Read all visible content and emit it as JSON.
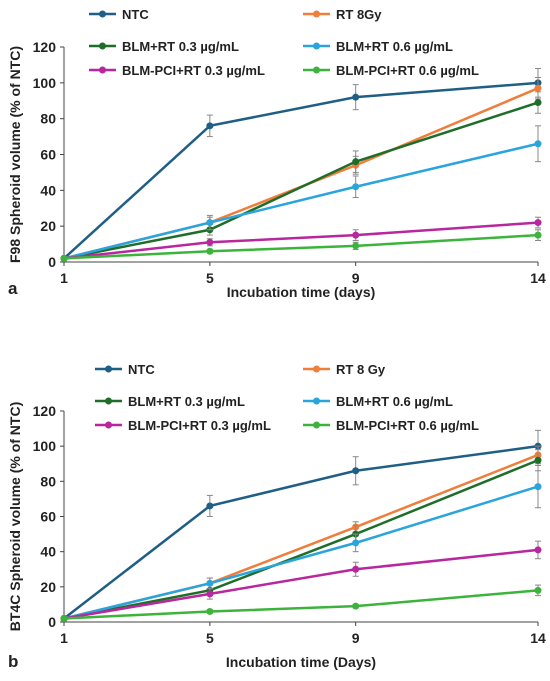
{
  "chart_data": [
    {
      "panel": "a",
      "type": "line",
      "xlabel": "Incubation time (days)",
      "ylabel": "F98 Spheroid volume (% of NTC)",
      "x": [
        1,
        5,
        9,
        14
      ],
      "ylim": [
        0,
        120
      ],
      "yticks": [
        0,
        20,
        40,
        60,
        80,
        100,
        120
      ],
      "grid": false,
      "legend_position": "top",
      "series": [
        {
          "name": "NTC",
          "color": "#1f5f85",
          "values": [
            2,
            76,
            92,
            100
          ],
          "errors": [
            0,
            6,
            7,
            8
          ]
        },
        {
          "name": "RT 8Gy",
          "color": "#f07d3a",
          "values": [
            2,
            22,
            54,
            97
          ],
          "errors": [
            0,
            3,
            5,
            6
          ]
        },
        {
          "name": "BLM+RT 0.3 µg/mL",
          "color": "#1e6e2a",
          "values": [
            2,
            18,
            56,
            89
          ],
          "errors": [
            0,
            3,
            6,
            6
          ]
        },
        {
          "name": "BLM+RT 0.6 µg/mL",
          "color": "#2aa4dc",
          "values": [
            2,
            22,
            42,
            66
          ],
          "errors": [
            0,
            4,
            6,
            10
          ]
        },
        {
          "name": "BLM-PCI+RT 0.3 µg/mL",
          "color": "#b8279e",
          "values": [
            2,
            11,
            15,
            22
          ],
          "errors": [
            0,
            2,
            3,
            3
          ]
        },
        {
          "name": "BLM-PCI+RT 0.6 µg/mL",
          "color": "#3cb43c",
          "values": [
            2,
            6,
            9,
            15
          ],
          "errors": [
            0,
            1,
            2,
            3
          ]
        }
      ]
    },
    {
      "panel": "b",
      "type": "line",
      "xlabel": "Incubation time (Days)",
      "ylabel": "BT4C Spheroid volume (% of NTC)",
      "x": [
        1,
        5,
        9,
        14
      ],
      "ylim": [
        0,
        120
      ],
      "yticks": [
        0,
        20,
        40,
        60,
        80,
        100,
        120
      ],
      "grid": false,
      "legend_position": "top",
      "series": [
        {
          "name": "NTC",
          "color": "#1f5f85",
          "values": [
            2,
            66,
            86,
            100
          ],
          "errors": [
            0,
            6,
            8,
            9
          ]
        },
        {
          "name": "RT 8 Gy",
          "color": "#f07d3a",
          "values": [
            2,
            22,
            54,
            95
          ],
          "errors": [
            0,
            3,
            3,
            5
          ]
        },
        {
          "name": "BLM+RT 0.3 µg/mL",
          "color": "#1e6e2a",
          "values": [
            2,
            18,
            50,
            92
          ],
          "errors": [
            0,
            3,
            5,
            6
          ]
        },
        {
          "name": "BLM+RT 0.6 µg/mL",
          "color": "#2aa4dc",
          "values": [
            2,
            22,
            45,
            77
          ],
          "errors": [
            0,
            3,
            5,
            12
          ]
        },
        {
          "name": "BLM-PCI+RT 0.3 µg/mL",
          "color": "#b8279e",
          "values": [
            2,
            16,
            30,
            41
          ],
          "errors": [
            0,
            3,
            4,
            5
          ]
        },
        {
          "name": "BLM-PCI+RT 0.6 µg/mL",
          "color": "#3cb43c",
          "values": [
            2,
            6,
            9,
            18
          ],
          "errors": [
            0,
            1,
            1,
            3
          ]
        }
      ]
    }
  ]
}
